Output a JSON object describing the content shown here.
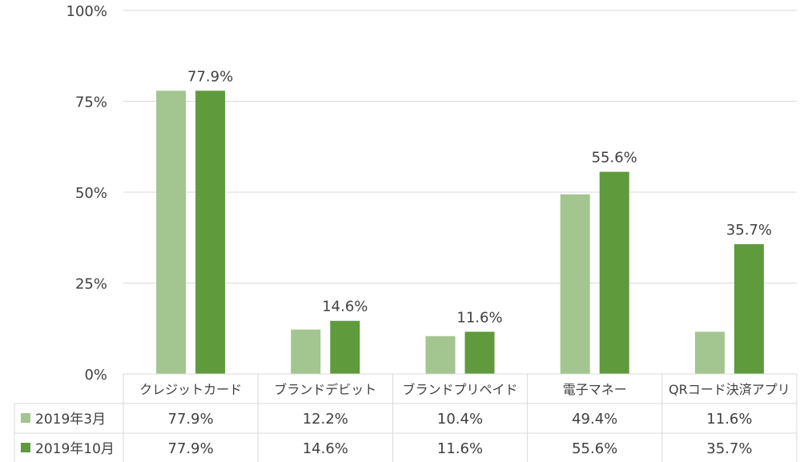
{
  "chart_data": {
    "type": "bar",
    "categories": [
      "クレジットカード",
      "ブランドデビット",
      "ブランドプリペイド",
      "電子マネー",
      "QRコード決済アプリ"
    ],
    "series": [
      {
        "name": "2019年3月",
        "values": [
          77.9,
          12.2,
          10.4,
          49.4,
          11.6
        ],
        "table_labels": [
          "77.9%",
          "12.2%",
          "10.4%",
          "49.4%",
          "11.6%"
        ]
      },
      {
        "name": "2019年10月",
        "values": [
          77.9,
          14.6,
          11.6,
          55.6,
          35.7
        ],
        "table_labels": [
          "77.9%",
          "14.6%",
          "11.6%",
          "55.6%",
          "35.7%"
        ],
        "data_labels": [
          "77.9%",
          "14.6%",
          "11.6%",
          "55.6%",
          "35.7%"
        ]
      }
    ],
    "ylim": [
      0,
      100
    ],
    "yticks": [
      0,
      25,
      50,
      75,
      100
    ],
    "ytick_labels": [
      "0%",
      "25%",
      "50%",
      "75%",
      "100%"
    ],
    "grid": true,
    "legend": "data-table-below",
    "colors": {
      "series1": "#a3c590",
      "series2": "#5f9a3d",
      "grid": "#d9d9d9",
      "text": "#404040"
    }
  }
}
